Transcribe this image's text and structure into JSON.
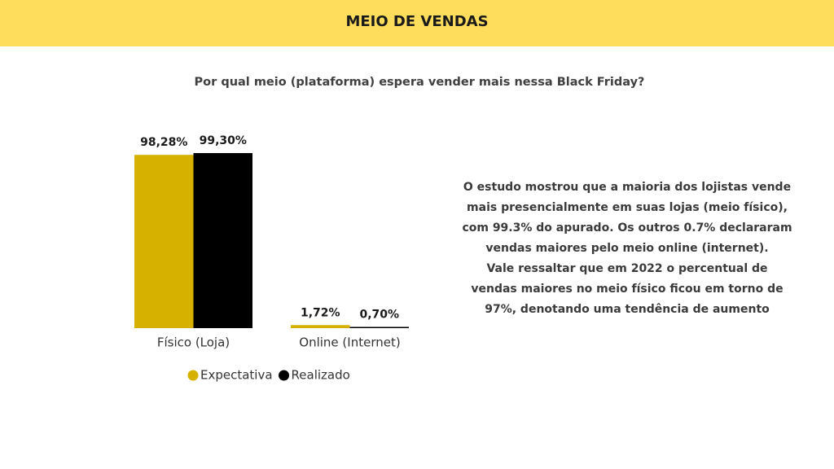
{
  "header": {
    "title": "MEIO DE VENDAS"
  },
  "chart_data": {
    "type": "bar",
    "title": "Por qual meio (plataforma) espera vender mais nessa Black Friday?",
    "categories": [
      "Físico (Loja)",
      "Online (Internet)"
    ],
    "series": [
      {
        "name": "Expectativa",
        "color": "#d6b100",
        "values": [
          98.28,
          1.72
        ],
        "value_labels": [
          "98,28%",
          "1,72%"
        ]
      },
      {
        "name": "Realizado",
        "color": "#000000",
        "values": [
          99.3,
          0.7
        ],
        "value_labels": [
          "99,30%",
          "0,70%"
        ]
      }
    ],
    "legend": "bottom"
  },
  "description": {
    "lines": [
      "O estudo mostrou que a maioria dos lojistas vende",
      "mais presencialmente em suas lojas (meio físico),",
      "com 99.3% do apurado. Os outros 0.7% declararam",
      "vendas maiores pelo meio online (internet).",
      "Vale ressaltar que em 2022 o percentual de",
      "vendas maiores no meio físico ficou em torno de",
      "97%, denotando uma tendência de aumento"
    ]
  }
}
